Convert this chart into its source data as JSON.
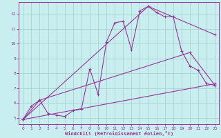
{
  "xlabel": "Windchill (Refroidissement éolien,°C)",
  "xlim": [
    -0.5,
    23.5
  ],
  "ylim": [
    4.6,
    12.8
  ],
  "xticks": [
    0,
    1,
    2,
    3,
    4,
    5,
    6,
    7,
    8,
    9,
    10,
    11,
    12,
    13,
    14,
    15,
    16,
    17,
    18,
    19,
    20,
    21,
    22,
    23
  ],
  "yticks": [
    5,
    6,
    7,
    8,
    9,
    10,
    11,
    12
  ],
  "bg_color": "#c8eef0",
  "grid_color": "#a0cfc8",
  "line_color": "#993399",
  "series": [
    [
      0,
      4.9
    ],
    [
      1,
      5.8
    ],
    [
      2,
      6.2
    ],
    [
      3,
      5.3
    ],
    [
      4,
      5.2
    ],
    [
      5,
      5.1
    ],
    [
      6,
      5.5
    ],
    [
      7,
      5.6
    ],
    [
      8,
      8.3
    ],
    [
      9,
      6.6
    ],
    [
      10,
      10.1
    ],
    [
      11,
      11.4
    ],
    [
      12,
      11.5
    ],
    [
      13,
      9.6
    ],
    [
      14,
      12.2
    ],
    [
      15,
      12.5
    ],
    [
      16,
      12.1
    ],
    [
      17,
      11.8
    ],
    [
      18,
      11.8
    ],
    [
      19,
      9.5
    ],
    [
      20,
      8.5
    ],
    [
      21,
      8.2
    ],
    [
      22,
      7.3
    ],
    [
      23,
      7.2
    ]
  ],
  "line2": [
    [
      0,
      4.9
    ],
    [
      2,
      6.2
    ],
    [
      20,
      9.4
    ],
    [
      23,
      7.2
    ]
  ],
  "line3": [
    [
      0,
      4.9
    ],
    [
      23,
      7.3
    ]
  ],
  "line4": [
    [
      0,
      4.9
    ],
    [
      15,
      12.5
    ],
    [
      23,
      10.6
    ]
  ]
}
